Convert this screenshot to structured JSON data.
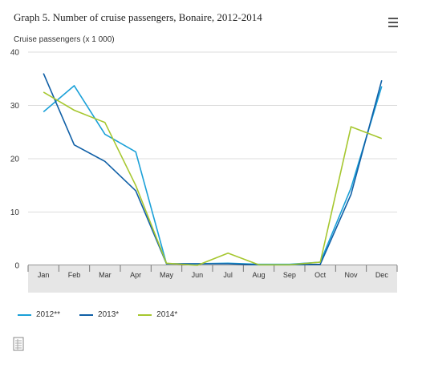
{
  "title": "Graph 5. Number of cruise passengers, Bonaire, 2012-2014",
  "menu_icon": "hamburger-menu-icon",
  "export_icon": "document-export-icon",
  "chart_data": {
    "type": "line",
    "title": "Graph 5. Number of cruise passengers, Bonaire, 2012-2014",
    "xlabel": "",
    "ylabel": "Cruise passengers (x 1 000)",
    "categories": [
      "Jan",
      "Feb",
      "Mar",
      "Apr",
      "May",
      "Jun",
      "Jul",
      "Aug",
      "Sep",
      "Oct",
      "Nov",
      "Dec"
    ],
    "ylim": [
      0,
      40
    ],
    "yticks": [
      "0",
      "10",
      "20",
      "30",
      "40"
    ],
    "grid": true,
    "legend": "bottom",
    "series": [
      {
        "name": "2012**",
        "color": "#1aa0d8",
        "values": [
          28.8,
          33.7,
          24.6,
          21.3,
          0.3,
          0.3,
          0.4,
          0.2,
          0.2,
          0.6,
          14.5,
          33.6
        ]
      },
      {
        "name": "2013*",
        "color": "#0f5fa6",
        "values": [
          36.0,
          22.6,
          19.5,
          14.0,
          0.3,
          0.3,
          0.3,
          0.1,
          0.1,
          0.2,
          13.3,
          34.7
        ]
      },
      {
        "name": "2014*",
        "color": "#a6c72f",
        "values": [
          32.5,
          29.1,
          26.8,
          15.0,
          0.4,
          0.0,
          2.3,
          0.1,
          0.1,
          0.6,
          26.0,
          23.8
        ]
      }
    ]
  }
}
